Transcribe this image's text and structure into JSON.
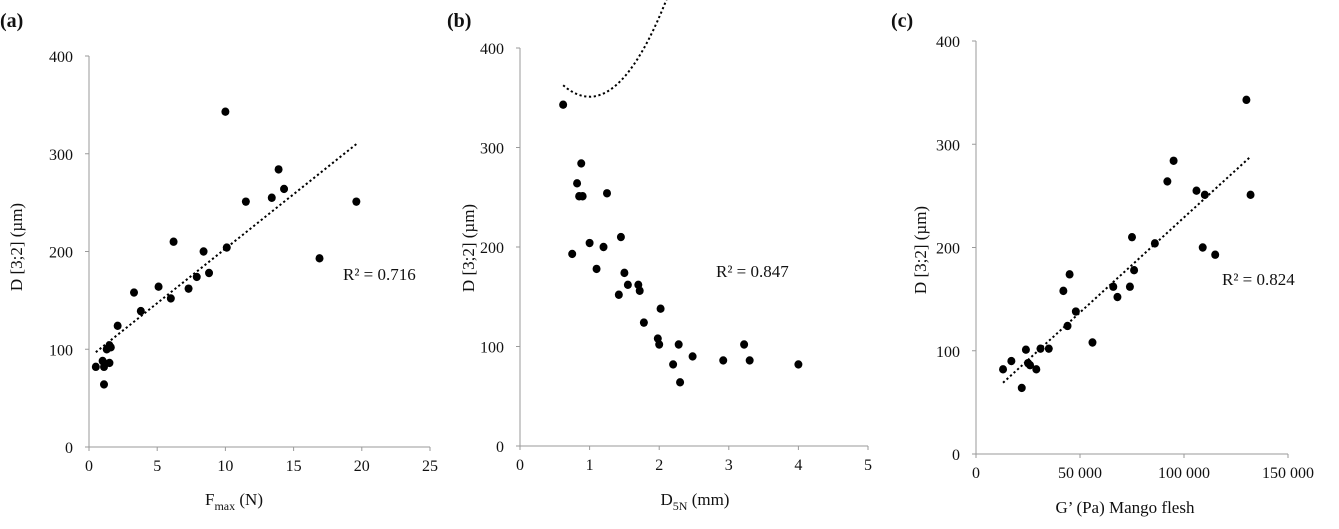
{
  "figure": {
    "panels": [
      {
        "label": "(a)",
        "r2_text": "R² = 0.716",
        "xlabel_main": "F",
        "xlabel_sub": "max",
        "xlabel_rest": " (N)",
        "ylabel": "D [3;2] (µm)"
      },
      {
        "label": "(b)",
        "r2_text": "R² = 0.847",
        "xlabel_main": "D",
        "xlabel_sub": "5N",
        "xlabel_rest": "  (mm)",
        "ylabel": "D [3;2] (µm)"
      },
      {
        "label": "(c)",
        "r2_text": "R² = 0.824",
        "xlabel_main": "G’ (Pa) Mango flesh",
        "xlabel_sub": "",
        "xlabel_rest": "",
        "ylabel": "D [3;2] (µm)"
      }
    ]
  },
  "chart_data": [
    {
      "type": "scatter",
      "title": "(a)",
      "xlabel": "Fmax (N)",
      "ylabel": "D [3;2] (µm)",
      "xlim": [
        0,
        25
      ],
      "ylim": [
        0,
        400
      ],
      "x_ticks": [
        0,
        5,
        10,
        15,
        20,
        25
      ],
      "x_tick_labels": [
        "0",
        "5",
        "10",
        "15",
        "20",
        "25"
      ],
      "y_ticks": [
        0,
        100,
        200,
        300,
        400
      ],
      "y_tick_labels": [
        "0",
        "100",
        "200",
        "300",
        "400"
      ],
      "grid": false,
      "trendline": {
        "type": "linear",
        "x_range": [
          0.5,
          19.7
        ],
        "y_range": [
          97,
          311
        ],
        "r2": 0.716
      },
      "annotations": [
        "R² = 0.716"
      ],
      "points": [
        [
          0.5,
          82
        ],
        [
          1.0,
          88
        ],
        [
          1.1,
          82
        ],
        [
          1.1,
          64
        ],
        [
          1.3,
          100
        ],
        [
          1.5,
          86
        ],
        [
          1.5,
          104
        ],
        [
          1.6,
          102
        ],
        [
          2.1,
          124
        ],
        [
          3.3,
          158
        ],
        [
          3.8,
          139
        ],
        [
          5.1,
          164
        ],
        [
          6.0,
          152
        ],
        [
          6.2,
          210
        ],
        [
          7.3,
          162
        ],
        [
          7.9,
          174
        ],
        [
          8.4,
          200
        ],
        [
          8.8,
          178
        ],
        [
          10.0,
          343
        ],
        [
          10.1,
          204
        ],
        [
          11.5,
          251
        ],
        [
          13.4,
          255
        ],
        [
          13.9,
          284
        ],
        [
          14.3,
          264
        ],
        [
          16.9,
          193
        ],
        [
          19.6,
          251
        ]
      ]
    },
    {
      "type": "scatter",
      "title": "(b)",
      "xlabel": "D5N (mm)",
      "ylabel": "D [3;2] (µm)",
      "xlim": [
        0,
        5
      ],
      "ylim": [
        0,
        400
      ],
      "x_ticks": [
        0,
        1,
        2,
        3,
        4,
        5
      ],
      "x_tick_labels": [
        "0",
        "1",
        "2",
        "3",
        "4",
        "5"
      ],
      "y_ticks": [
        0,
        100,
        200,
        300,
        400
      ],
      "y_tick_labels": [
        "0",
        "100",
        "200",
        "300",
        "400"
      ],
      "grid": false,
      "trendline": {
        "type": "polynomial",
        "order": 2,
        "coefficients": [
          80,
          -160,
          431
        ],
        "x_range": [
          0.62,
          4.0
        ],
        "r2": 0.847
      },
      "annotations": [
        "R² = 0.847"
      ],
      "points": [
        [
          0.62,
          343
        ],
        [
          0.75,
          193
        ],
        [
          0.82,
          264
        ],
        [
          0.85,
          251
        ],
        [
          0.88,
          284
        ],
        [
          0.9,
          251
        ],
        [
          1.0,
          204
        ],
        [
          1.1,
          178
        ],
        [
          1.2,
          200
        ],
        [
          1.25,
          254
        ],
        [
          1.42,
          152
        ],
        [
          1.45,
          210
        ],
        [
          1.5,
          174
        ],
        [
          1.55,
          162
        ],
        [
          1.7,
          162
        ],
        [
          1.72,
          156
        ],
        [
          1.78,
          124
        ],
        [
          1.98,
          108
        ],
        [
          2.0,
          102
        ],
        [
          2.02,
          138
        ],
        [
          2.2,
          82
        ],
        [
          2.28,
          102
        ],
        [
          2.3,
          64
        ],
        [
          2.48,
          90
        ],
        [
          2.92,
          86
        ],
        [
          3.22,
          102
        ],
        [
          3.3,
          86
        ],
        [
          4.0,
          82
        ]
      ]
    },
    {
      "type": "scatter",
      "title": "(c)",
      "xlabel": "G’ (Pa) Mango flesh",
      "ylabel": "D [3;2] (µm)",
      "xlim": [
        0,
        150000
      ],
      "ylim": [
        0,
        400
      ],
      "x_ticks": [
        0,
        50000,
        100000,
        150000
      ],
      "x_tick_labels": [
        "0",
        "50 000",
        "100 000",
        "150 000"
      ],
      "y_ticks": [
        0,
        100,
        200,
        300,
        400
      ],
      "y_tick_labels": [
        "0",
        "100",
        "200",
        "300",
        "400"
      ],
      "grid": false,
      "trendline": {
        "type": "linear",
        "x_range": [
          13000,
          132000
        ],
        "y_range": [
          69,
          288
        ],
        "r2": 0.824
      },
      "annotations": [
        "R² = 0.824"
      ],
      "points": [
        [
          13000,
          82
        ],
        [
          17000,
          90
        ],
        [
          22000,
          64
        ],
        [
          24000,
          101
        ],
        [
          25000,
          88
        ],
        [
          26000,
          86
        ],
        [
          29000,
          82
        ],
        [
          31000,
          102
        ],
        [
          35000,
          102
        ],
        [
          42000,
          158
        ],
        [
          44000,
          124
        ],
        [
          45000,
          174
        ],
        [
          48000,
          138
        ],
        [
          56000,
          108
        ],
        [
          66000,
          162
        ],
        [
          68000,
          152
        ],
        [
          74000,
          162
        ],
        [
          75000,
          210
        ],
        [
          76000,
          178
        ],
        [
          86000,
          204
        ],
        [
          92000,
          264
        ],
        [
          95000,
          284
        ],
        [
          106000,
          255
        ],
        [
          109000,
          200
        ],
        [
          110000,
          251
        ],
        [
          115000,
          193
        ],
        [
          130000,
          343
        ],
        [
          132000,
          251
        ]
      ]
    }
  ]
}
